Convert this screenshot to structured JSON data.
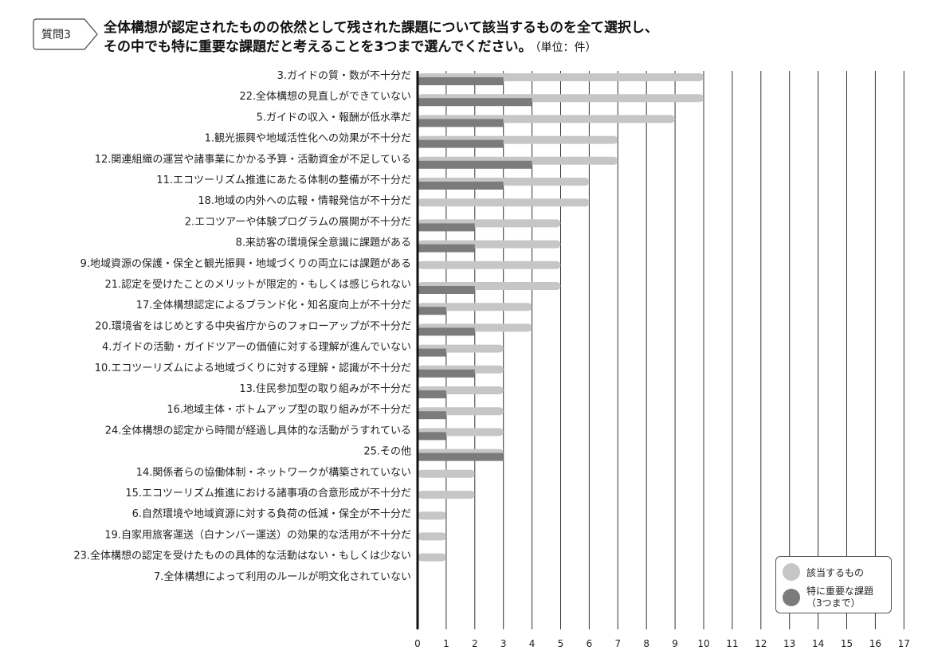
{
  "header": {
    "badge": "質問3",
    "title_line1": "全体構想が認定されたものの依然として残された課題について該当するものを全て選択し、",
    "title_line2": "その中でも特に重要な課題だと考えることを3つまで選んでください。",
    "unit": "（単位：件）"
  },
  "legend": {
    "series1": "該当するもの",
    "series2_line1": "特に重要な課題",
    "series2_line2": "（3つまで）"
  },
  "colors": {
    "series1": "#c6c6c6",
    "series2": "#7b7b7b",
    "axis": "#111111",
    "grid": "#333333"
  },
  "chart_data": {
    "type": "bar",
    "orientation": "horizontal",
    "categories": [
      "3.ガイドの質・数が不十分だ",
      "22.全体構想の見直しができていない",
      "5.ガイドの収入・報酬が低水準だ",
      "1.観光振興や地域活性化への効果が不十分だ",
      "12.関連組織の運営や諸事業にかかる予算・活動資金が不足している",
      "11.エコツーリズム推進にあたる体制の整備が不十分だ",
      "18.地域の内外への広報・情報発信が不十分だ",
      "2.エコツアーや体験プログラムの展開が不十分だ",
      "8.来訪客の環境保全意識に課題がある",
      "9.地域資源の保護・保全と観光振興・地域づくりの両立には課題がある",
      "21.認定を受けたことのメリットが限定的・もしくは感じられない",
      "17.全体構想認定によるブランド化・知名度向上が不十分だ",
      "20.環境省をはじめとする中央省庁からのフォローアップが不十分だ",
      "4.ガイドの活動・ガイドツアーの価値に対する理解が進んでいない",
      "10.エコツーリズムによる地域づくりに対する理解・認識が不十分だ",
      "13.住民参加型の取り組みが不十分だ",
      "16.地域主体・ボトムアップ型の取り組みが不十分だ",
      "24.全体構想の認定から時間が経過し具体的な活動がうすれている",
      "25.その他",
      "14.関係者らの協働体制・ネットワークが構築されていない",
      "15.エコツーリズム推進における諸事項の合意形成が不十分だ",
      "6.自然環境や地域資源に対する負荷の低減・保全が不十分だ",
      "19.自家用旅客運送（白ナンバー運送）の効果的な活用が不十分だ",
      "23.全体構想の認定を受けたものの具体的な活動はない・もしくは少ない",
      "7.全体構想によって利用のルールが明文化されていない"
    ],
    "series": [
      {
        "name": "該当するもの",
        "values": [
          10,
          10,
          9,
          7,
          7,
          6,
          6,
          5,
          5,
          5,
          5,
          4,
          4,
          3,
          3,
          3,
          3,
          3,
          3,
          2,
          2,
          1,
          1,
          1,
          0
        ]
      },
      {
        "name": "特に重要な課題（3つまで）",
        "values": [
          3,
          4,
          3,
          3,
          4,
          3,
          0,
          2,
          2,
          0,
          2,
          1,
          2,
          1,
          2,
          1,
          1,
          1,
          3,
          0,
          0,
          0,
          0,
          0,
          0
        ]
      }
    ],
    "xlim": [
      0,
      17
    ],
    "xticks": [
      0,
      1,
      2,
      3,
      4,
      5,
      6,
      7,
      8,
      9,
      10,
      11,
      12,
      13,
      14,
      15,
      16,
      17
    ],
    "grid": true,
    "legend_position": "bottom-right"
  }
}
